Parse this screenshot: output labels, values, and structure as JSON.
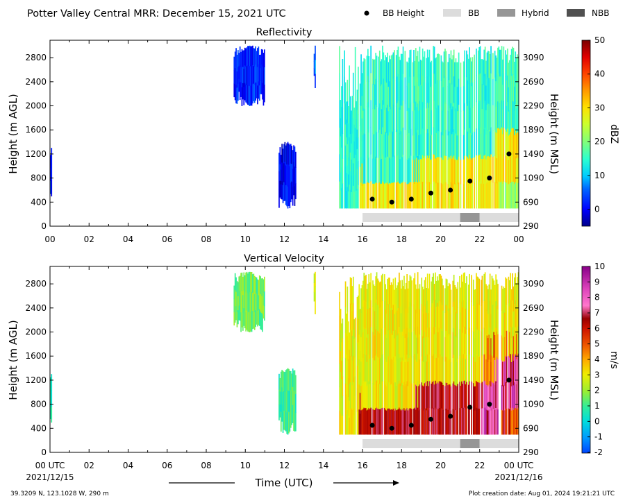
{
  "header": {
    "title": "Potter Valley Central MRR:  December 15, 2021 UTC",
    "legend": [
      {
        "label": "BB Height",
        "symbol": "dot",
        "color": "#000000"
      },
      {
        "label": "BB",
        "symbol": "box",
        "color": "#dcdcdc"
      },
      {
        "label": "Hybrid",
        "symbol": "box",
        "color": "#969696"
      },
      {
        "label": "NBB",
        "symbol": "box",
        "color": "#505050"
      }
    ]
  },
  "axes": {
    "left_label": "Height (m AGL)",
    "right_label": "Height (m MSL)",
    "xlabel": "Time (UTC)",
    "x_ticks": [
      "00",
      "02",
      "04",
      "06",
      "08",
      "10",
      "12",
      "14",
      "16",
      "18",
      "20",
      "22",
      "00"
    ],
    "x_ticks_bottom": [
      "00 UTC",
      "02",
      "04",
      "06",
      "08",
      "10",
      "12",
      "14",
      "16",
      "18",
      "20",
      "22",
      "00 UTC"
    ],
    "start_date": "2021/12/15",
    "end_date": "2021/12/16",
    "left_ticks": [
      "0",
      "400",
      "800",
      "1200",
      "1600",
      "2000",
      "2400",
      "2800"
    ],
    "right_ticks": [
      "290",
      "690",
      "1090",
      "1490",
      "1890",
      "2290",
      "2690",
      "3090"
    ]
  },
  "footer": {
    "location": "39.3209 N, 123.1028 W, 290 m",
    "creation": "Plot creation date: Aug 01, 2024 19:21:21 UTC"
  },
  "colorbars": [
    {
      "label": "dBZ",
      "ticks": [
        "50",
        "40",
        "30",
        "20",
        "10",
        "0"
      ],
      "range": [
        -5,
        50
      ]
    },
    {
      "label": "m/s",
      "ticks": [
        "10",
        "9",
        "8",
        "7",
        "6",
        "5",
        "4",
        "3",
        "2",
        "1",
        "0",
        "-1",
        "-2"
      ],
      "range": [
        -2,
        10
      ]
    }
  ],
  "chart_data": [
    {
      "type": "heatmap",
      "title": "Reflectivity",
      "xlabel": "",
      "ylabel": "Height (m AGL)",
      "ylabel_right": "Height (m MSL)",
      "xlim": [
        0,
        24
      ],
      "ylim": [
        0,
        3090
      ],
      "ylim_right": [
        290,
        3380
      ],
      "colorbar_label": "dBZ",
      "colorbar_range": [
        -5,
        50
      ],
      "echo_regions": [
        {
          "t_start": 0.0,
          "t_end": 0.1,
          "h_start": 500,
          "h_end": 1300,
          "value": 2
        },
        {
          "t_start": 9.4,
          "t_end": 11.0,
          "h_start": 2000,
          "h_end": 3000,
          "value": 2
        },
        {
          "t_start": 11.7,
          "t_end": 12.6,
          "h_start": 300,
          "h_end": 1400,
          "value": 0
        },
        {
          "t_start": 13.5,
          "t_end": 13.6,
          "h_start": 2300,
          "h_end": 3000,
          "value": 5
        },
        {
          "t_start": 14.8,
          "t_end": 24.0,
          "h_start": 300,
          "h_end": 3000,
          "value": 15
        }
      ],
      "bright_band": {
        "times": [
          16.5,
          17.5,
          18.5,
          19.5,
          20.5,
          21.5,
          22.5,
          23.5
        ],
        "heights": [
          450,
          400,
          450,
          550,
          600,
          750,
          800,
          1200
        ]
      },
      "bb_strip": [
        {
          "start": 16.0,
          "end": 21.0,
          "type": "BB"
        },
        {
          "start": 21.0,
          "end": 22.0,
          "type": "Hybrid"
        },
        {
          "start": 22.0,
          "end": 24.0,
          "type": "BB"
        }
      ]
    },
    {
      "type": "heatmap",
      "title": "Vertical Velocity",
      "xlabel": "Time (UTC)",
      "ylabel": "Height (m AGL)",
      "ylabel_right": "Height (m MSL)",
      "xlim": [
        0,
        24
      ],
      "ylim": [
        0,
        3090
      ],
      "ylim_right": [
        290,
        3380
      ],
      "colorbar_label": "m/s",
      "colorbar_range": [
        -2,
        10
      ],
      "echo_regions": [
        {
          "t_start": 0.0,
          "t_end": 0.1,
          "h_start": 500,
          "h_end": 1300,
          "value": 0.5
        },
        {
          "t_start": 9.4,
          "t_end": 11.0,
          "h_start": 2000,
          "h_end": 3000,
          "value": 1.5
        },
        {
          "t_start": 11.7,
          "t_end": 12.6,
          "h_start": 300,
          "h_end": 1400,
          "value": 1.0
        },
        {
          "t_start": 13.5,
          "t_end": 13.6,
          "h_start": 2300,
          "h_end": 3000,
          "value": 2.5
        },
        {
          "t_start": 14.8,
          "t_end": 24.0,
          "h_start": 300,
          "h_end": 3000,
          "value": 3
        }
      ],
      "bright_band": {
        "times": [
          16.5,
          17.5,
          18.5,
          19.5,
          20.5,
          21.5,
          22.5,
          23.5
        ],
        "heights": [
          450,
          400,
          450,
          550,
          600,
          750,
          800,
          1200
        ]
      },
      "bb_strip": [
        {
          "start": 16.0,
          "end": 21.0,
          "type": "BB"
        },
        {
          "start": 21.0,
          "end": 22.0,
          "type": "Hybrid"
        },
        {
          "start": 22.0,
          "end": 24.0,
          "type": "BB"
        }
      ]
    }
  ]
}
